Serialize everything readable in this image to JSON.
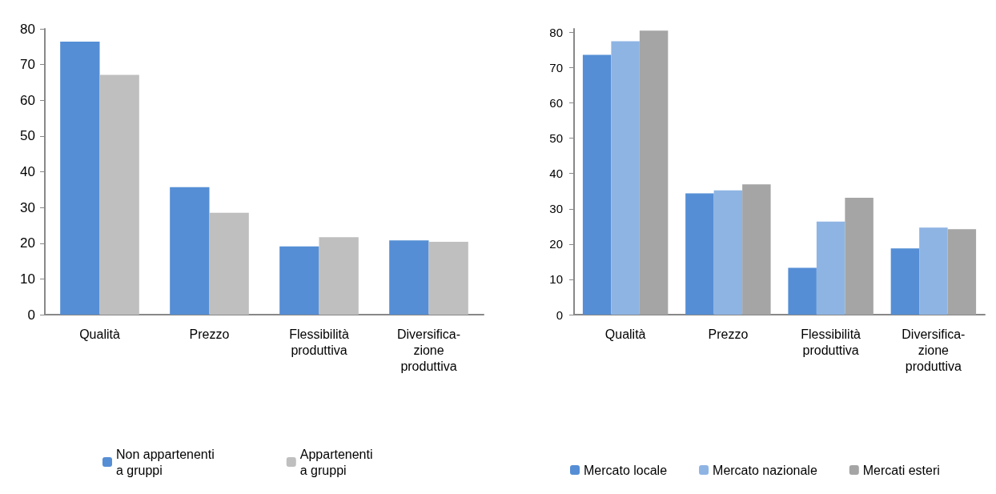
{
  "chart_data": [
    {
      "type": "bar",
      "categories": [
        "Qualità",
        "Prezzo",
        "Flessibilità\nproduttiva",
        "Diversifica-\nzione\nproduttiva"
      ],
      "series": [
        {
          "name": "Non appartenenti\na gruppi",
          "color": "#558ed5",
          "values": [
            76.4,
            35.7,
            19.1,
            20.8
          ]
        },
        {
          "name": "Appartenenti\na gruppi",
          "color": "#bfbfbf",
          "values": [
            67.1,
            28.5,
            21.7,
            20.4
          ]
        }
      ],
      "ylim": [
        0,
        80
      ],
      "yticks": [
        0,
        10,
        20,
        30,
        40,
        50,
        60,
        70,
        80
      ],
      "grid": false,
      "legend": "bottom"
    },
    {
      "type": "bar",
      "categories": [
        "Qualità",
        "Prezzo",
        "Flessibilità\nproduttiva",
        "Diversifica-\nzione\nproduttiva"
      ],
      "series": [
        {
          "name": "Mercato locale",
          "color": "#558ed5",
          "values": [
            73.6,
            34.4,
            13.3,
            18.8
          ]
        },
        {
          "name": "Mercato nazionale",
          "color": "#8eb4e3",
          "values": [
            77.5,
            35.2,
            26.4,
            24.7
          ]
        },
        {
          "name": "Mercati esteri",
          "color": "#a5a5a5",
          "values": [
            80.5,
            36.9,
            33.1,
            24.2
          ]
        }
      ],
      "ylim": [
        0,
        81
      ],
      "yticks": [
        0,
        10,
        20,
        30,
        40,
        50,
        60,
        70,
        80
      ],
      "grid": false,
      "legend": "bottom"
    }
  ]
}
